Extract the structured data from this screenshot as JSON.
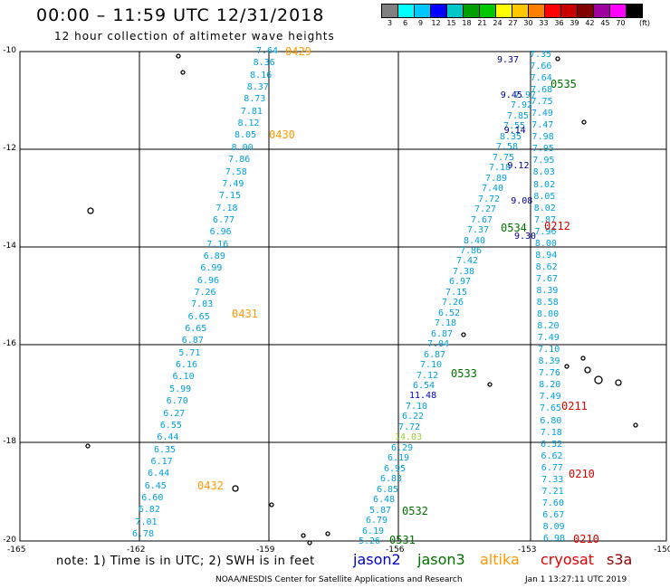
{
  "header": {
    "title": "00:00 – 11:59 UTC 12/31/2018",
    "subtitle": "12 hour collection of altimeter wave heights"
  },
  "legend_scale": {
    "colors": [
      "#808080",
      "#00ffff",
      "#00c8ff",
      "#0000ff",
      "#00c8c8",
      "#00a000",
      "#00c800",
      "#ffff00",
      "#ffc800",
      "#ff8000",
      "#ff0000",
      "#c80000",
      "#800000",
      "#a000a0",
      "#ff00ff",
      "#000000"
    ],
    "labels": [
      "3",
      "6",
      "9",
      "12",
      "15",
      "18",
      "21",
      "24",
      "27",
      "30",
      "33",
      "36",
      "39",
      "42",
      "45",
      "70"
    ],
    "unit": "(ft)"
  },
  "axes": {
    "y_labels": [
      "-10",
      "-12",
      "-14",
      "-16",
      "-18",
      "-20"
    ],
    "x_labels": [
      "-165",
      "-162",
      "-159",
      "-156",
      "-153",
      "-150"
    ]
  },
  "tracks": [
    {
      "color": "#00a0dc",
      "values": [
        "7.64",
        "8.36",
        "8.16",
        "8.37",
        "8.73",
        "7.81",
        "8.12",
        "8.05",
        "8.00",
        "7.86",
        "7.58",
        "7.49",
        "7.15",
        "7.18",
        "6.77",
        "6.96",
        "7.16",
        "6.89",
        "6.99",
        "6.96",
        "7.26",
        "7.03",
        "6.65",
        "6.65",
        "6.87",
        "5.71",
        "6.16",
        "6.10",
        "5.99",
        "6.70",
        "6.27",
        "6.55",
        "6.44",
        "6.35",
        "6.17",
        "6.44",
        "6.45",
        "6.60",
        "6.82",
        "7.01",
        "6.78"
      ]
    },
    {
      "color": "#00a0dc",
      "values": [
        "7.35",
        "7.66",
        "7.64",
        "7.68",
        "7.75",
        "7.49",
        "7.47",
        "7.98",
        "7.95",
        "7.95",
        "8.03",
        "8.02",
        "8.05",
        "8.02",
        "7.87",
        "7.96",
        "8.00",
        "8.94",
        "8.62",
        "7.67",
        "8.39",
        "8.58",
        "8.00",
        "8.20",
        "7.49",
        "7.10",
        "8.39",
        "7.76",
        "8.20",
        "7.49",
        "7.65",
        "6.80",
        "7.18",
        "6.52",
        "6.62",
        "6.77",
        "7.33",
        "7.21",
        "7.60",
        "6.67",
        "8.09",
        "6.98"
      ]
    },
    {
      "color": "#00a0dc",
      "values": [
        "7.97",
        "7.92",
        "7.85",
        "7.55",
        "8.35",
        "7.58",
        "7.75",
        "7.18",
        "7.89",
        "7.40",
        "7.72",
        "7.27",
        "7.67",
        "7.37",
        "8.40",
        "7.86",
        "7.42",
        "7.38",
        "6.97",
        "7.15",
        "7.26",
        "6.52",
        "7.18",
        "6.87",
        "7.04",
        "6.87",
        "7.10",
        "7.12",
        "6.54",
        "11.48",
        "7.10",
        "6.22",
        "7.72",
        "14.03",
        "6.29",
        "6.19",
        "6.95",
        "6.83",
        "6.85",
        "6.48",
        "5.87",
        "6.79",
        "6.19",
        "5.26"
      ]
    },
    {
      "color": "#00008c",
      "values": [
        "9.37",
        "9.45",
        "9.14",
        "9.12",
        "9.08",
        "9.30"
      ]
    }
  ],
  "pass_times": [
    {
      "text": "0429",
      "color": "#ff9900"
    },
    {
      "text": "0430",
      "color": "#ff9900"
    },
    {
      "text": "0431",
      "color": "#ff9900"
    },
    {
      "text": "0432",
      "color": "#ff9900"
    },
    {
      "text": "0535",
      "color": "#007000"
    },
    {
      "text": "0534",
      "color": "#007000"
    },
    {
      "text": "0533",
      "color": "#007000"
    },
    {
      "text": "0532",
      "color": "#007000"
    },
    {
      "text": "0531",
      "color": "#007000"
    },
    {
      "text": "0212",
      "color": "#e00000"
    },
    {
      "text": "0211",
      "color": "#e00000"
    },
    {
      "text": "0210",
      "color": "#e00000"
    },
    {
      "text": "0210",
      "color": "#e00000"
    }
  ],
  "footer": {
    "note": "note: 1) Time is in UTC; 2) SWH is in feet",
    "satellites": [
      {
        "name": "jason2",
        "color": "#0000c8"
      },
      {
        "name": "jason3",
        "color": "#007000"
      },
      {
        "name": "altika",
        "color": "#ff9900"
      },
      {
        "name": "cryosat",
        "color": "#e00000"
      },
      {
        "name": "s3a",
        "color": "#8b0000"
      }
    ],
    "credit": "NOAA/NESDIS Center for Satellite Applications and Research",
    "timestamp": "Jan  1 13:27:11 UTC 2019"
  }
}
